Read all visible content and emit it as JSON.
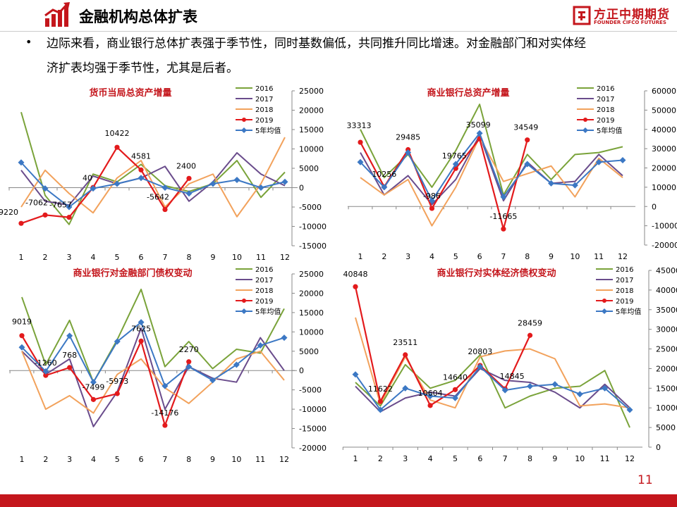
{
  "header": {
    "title": "金融机构总体扩表",
    "logo_cn": "方正中期期货",
    "logo_en": "FOUNDER CIFCO FUTURES"
  },
  "bullet": {
    "line1": "边际来看，商业银行总体扩表强于季节性，同时基数偏低，共同推升同比增速。对金融部门和对实体经",
    "line2": "济扩表均强于季节性，尤其是后者。"
  },
  "page_number": "11",
  "colors": {
    "brand": "#c4161c",
    "s2016": "#7aa33a",
    "s2017": "#6a4c8c",
    "s2018": "#f2a25c",
    "s2019": "#e31a1c",
    "avg": "#3c78c4"
  },
  "chart_data": [
    {
      "type": "line",
      "title": "货币当局总资产增量",
      "categories": [
        "1",
        "2",
        "3",
        "4",
        "5",
        "6",
        "7",
        "8",
        "9",
        "10",
        "11",
        "12"
      ],
      "ylim": [
        -15000,
        25000
      ],
      "yticks": [
        "25000",
        "20000",
        "15000",
        "10000",
        "5000",
        "0",
        "-5000",
        "-10000",
        "-15000"
      ],
      "yticks_values": [
        25000,
        20000,
        15000,
        10000,
        5000,
        0,
        -5000,
        -10000,
        -15000
      ],
      "series": [
        {
          "name": "2016",
          "color": "#7aa33a",
          "values": [
            19500,
            -2000,
            -9500,
            3500,
            1500,
            6000,
            500,
            -1000,
            1000,
            7000,
            -2500,
            4000
          ]
        },
        {
          "name": "2017",
          "color": "#6a4c8c",
          "values": [
            4500,
            -3500,
            -4500,
            3000,
            1000,
            2500,
            5500,
            -3500,
            1500,
            9000,
            3500,
            500
          ]
        },
        {
          "name": "2018",
          "color": "#f2a25c",
          "values": [
            -5000,
            4500,
            -1500,
            -6500,
            2500,
            7000,
            -5000,
            1000,
            3500,
            -7500,
            1000,
            13000
          ]
        },
        {
          "name": "2019",
          "color": "#e31a1c",
          "marker": "dot",
          "values": [
            -9220,
            -7062,
            -7657,
            40,
            10422,
            4581,
            -5642,
            2400,
            null,
            null,
            null,
            null
          ]
        },
        {
          "name": "5年均值",
          "color": "#3c78c4",
          "marker": "diamond",
          "values": [
            6500,
            -200,
            -5000,
            -200,
            1000,
            2500,
            0,
            -1500,
            1000,
            2000,
            0,
            1500
          ]
        }
      ],
      "data_labels": [
        "-9220",
        "-7062",
        "-7657",
        "40",
        "10422",
        "4581",
        "-5642",
        "2400"
      ]
    },
    {
      "type": "line",
      "title": "商业银行总资产增量",
      "categories": [
        "1",
        "2",
        "3",
        "4",
        "5",
        "6",
        "7",
        "8",
        "9",
        "10",
        "11",
        "12"
      ],
      "ylim": [
        -20000,
        60000
      ],
      "yticks": [
        "60000",
        "50000",
        "40000",
        "30000",
        "20000",
        "10000",
        "0",
        "-10000",
        "-20000"
      ],
      "yticks_values": [
        60000,
        50000,
        40000,
        30000,
        20000,
        10000,
        0,
        -10000,
        -20000
      ],
      "series": [
        {
          "name": "2016",
          "color": "#7aa33a",
          "values": [
            40000,
            15000,
            27000,
            10000,
            29000,
            53000,
            6000,
            27000,
            14000,
            27000,
            28000,
            31000
          ]
        },
        {
          "name": "2017",
          "color": "#6a4c8c",
          "values": [
            28000,
            6000,
            16000,
            1000,
            14000,
            37000,
            3000,
            23000,
            12000,
            13000,
            27000,
            16000
          ]
        },
        {
          "name": "2018",
          "color": "#f2a25c",
          "values": [
            15000,
            6000,
            14000,
            -10000,
            10000,
            36000,
            13000,
            17000,
            21000,
            5000,
            25000,
            15000
          ]
        },
        {
          "name": "2019",
          "color": "#e31a1c",
          "marker": "dot",
          "values": [
            33313,
            10256,
            29485,
            -986,
            19765,
            35099,
            -11665,
            34549,
            null,
            null,
            null,
            null
          ]
        },
        {
          "name": "5年均值",
          "color": "#3c78c4",
          "marker": "diamond",
          "values": [
            23000,
            10000,
            28000,
            3000,
            22000,
            38000,
            5000,
            22000,
            12000,
            11000,
            23000,
            24000
          ]
        }
      ],
      "data_labels": [
        "33313",
        "10256",
        "29485",
        "-986",
        "19765",
        "35099",
        "-11665",
        "34549"
      ]
    },
    {
      "type": "line",
      "title": "商业银行对金融部门债权变动",
      "categories": [
        "1",
        "2",
        "3",
        "4",
        "5",
        "6",
        "7",
        "8",
        "9",
        "10",
        "11",
        "12"
      ],
      "ylim": [
        -20000,
        25000
      ],
      "yticks": [
        "25000",
        "20000",
        "15000",
        "10000",
        "5000",
        "0",
        "-5000",
        "-10000",
        "-15000",
        "-20000"
      ],
      "yticks_values": [
        25000,
        20000,
        15000,
        10000,
        5000,
        0,
        -5000,
        -10000,
        -15000,
        -20000
      ],
      "series": [
        {
          "name": "2016",
          "color": "#7aa33a",
          "values": [
            19000,
            1500,
            13000,
            -3000,
            8000,
            21000,
            1000,
            7500,
            500,
            5500,
            4500,
            16000
          ]
        },
        {
          "name": "2017",
          "color": "#6a4c8c",
          "values": [
            5000,
            -1000,
            3000,
            -14500,
            -5500,
            11000,
            -10000,
            1000,
            -2000,
            -3000,
            8500,
            0
          ]
        },
        {
          "name": "2018",
          "color": "#f2a25c",
          "values": [
            5000,
            -10000,
            -6500,
            -11000,
            -1000,
            3000,
            -4500,
            -8500,
            -3000,
            3000,
            5000,
            -2500
          ]
        },
        {
          "name": "2019",
          "color": "#e31a1c",
          "marker": "dot",
          "values": [
            9019,
            -1260,
            768,
            -7499,
            -5973,
            7625,
            -14176,
            2270,
            null,
            null,
            null,
            null
          ]
        },
        {
          "name": "5年均值",
          "color": "#3c78c4",
          "marker": "diamond",
          "values": [
            6000,
            -200,
            9000,
            -3000,
            7500,
            12500,
            -4000,
            1000,
            -2500,
            1500,
            6500,
            8500
          ]
        }
      ],
      "data_labels": [
        "9019",
        "-1260",
        "768",
        "-7499",
        "-5973",
        "7625",
        "-14176",
        "2270"
      ]
    },
    {
      "type": "line",
      "title": "商业银行对实体经济债权变动",
      "categories": [
        "1",
        "2",
        "3",
        "4",
        "5",
        "6",
        "7",
        "8",
        "9",
        "10",
        "11",
        "12"
      ],
      "ylim": [
        0,
        45000
      ],
      "yticks": [
        "45000",
        "40000",
        "35000",
        "30000",
        "25000",
        "20000",
        "15000",
        "10000",
        "5000",
        "0"
      ],
      "yticks_values": [
        45000,
        40000,
        35000,
        30000,
        25000,
        20000,
        15000,
        10000,
        5000,
        0
      ],
      "series": [
        {
          "name": "2016",
          "color": "#7aa33a",
          "values": [
            16500,
            10500,
            21000,
            15000,
            17000,
            23500,
            10000,
            13000,
            15000,
            15500,
            19500,
            5000
          ]
        },
        {
          "name": "2017",
          "color": "#6a4c8c",
          "values": [
            15500,
            9000,
            12500,
            14000,
            13000,
            20000,
            17000,
            16500,
            14000,
            10000,
            16000,
            10000
          ]
        },
        {
          "name": "2018",
          "color": "#f2a25c",
          "values": [
            33000,
            11000,
            23000,
            12000,
            10000,
            23000,
            24500,
            25000,
            22500,
            10500,
            11000,
            10000
          ]
        },
        {
          "name": "2019",
          "color": "#e31a1c",
          "marker": "dot",
          "values": [
            40848,
            11622,
            23511,
            10604,
            14640,
            20803,
            14845,
            28459,
            null,
            null,
            null,
            null
          ]
        },
        {
          "name": "5年均值",
          "color": "#3c78c4",
          "marker": "diamond",
          "values": [
            18500,
            9500,
            15000,
            13000,
            12500,
            20500,
            14500,
            15500,
            16000,
            13500,
            15000,
            9500
          ]
        }
      ],
      "data_labels": [
        "40848",
        "11622",
        "23511",
        "10604",
        "14640",
        "20803",
        "14845",
        "28459"
      ]
    }
  ]
}
